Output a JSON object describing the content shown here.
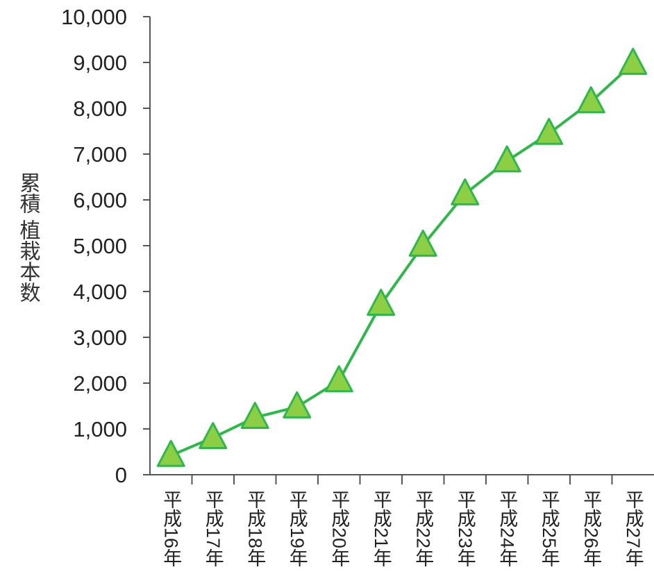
{
  "chart_data": {
    "type": "line",
    "categories": [
      "平成16年",
      "平成17年",
      "平成18年",
      "平成19年",
      "平成20年",
      "平成21年",
      "平成22年",
      "平成23年",
      "平成24年",
      "平成25年",
      "平成26年",
      "平成27年"
    ],
    "series": [
      {
        "values": [
          420,
          810,
          1250,
          1480,
          2050,
          3720,
          5010,
          6130,
          6850,
          7450,
          8140,
          8980
        ],
        "color": "#2db84a",
        "marker": "triangle",
        "marker_fill": "#8ccf45"
      }
    ],
    "ylabel": "累積 植栽本数",
    "ylim": [
      0,
      10000
    ],
    "yticks": [
      "0",
      "1,000",
      "2,000",
      "3,000",
      "4,000",
      "5,000",
      "6,000",
      "7,000",
      "8,000",
      "9,000",
      "10,000"
    ],
    "grid": false
  }
}
